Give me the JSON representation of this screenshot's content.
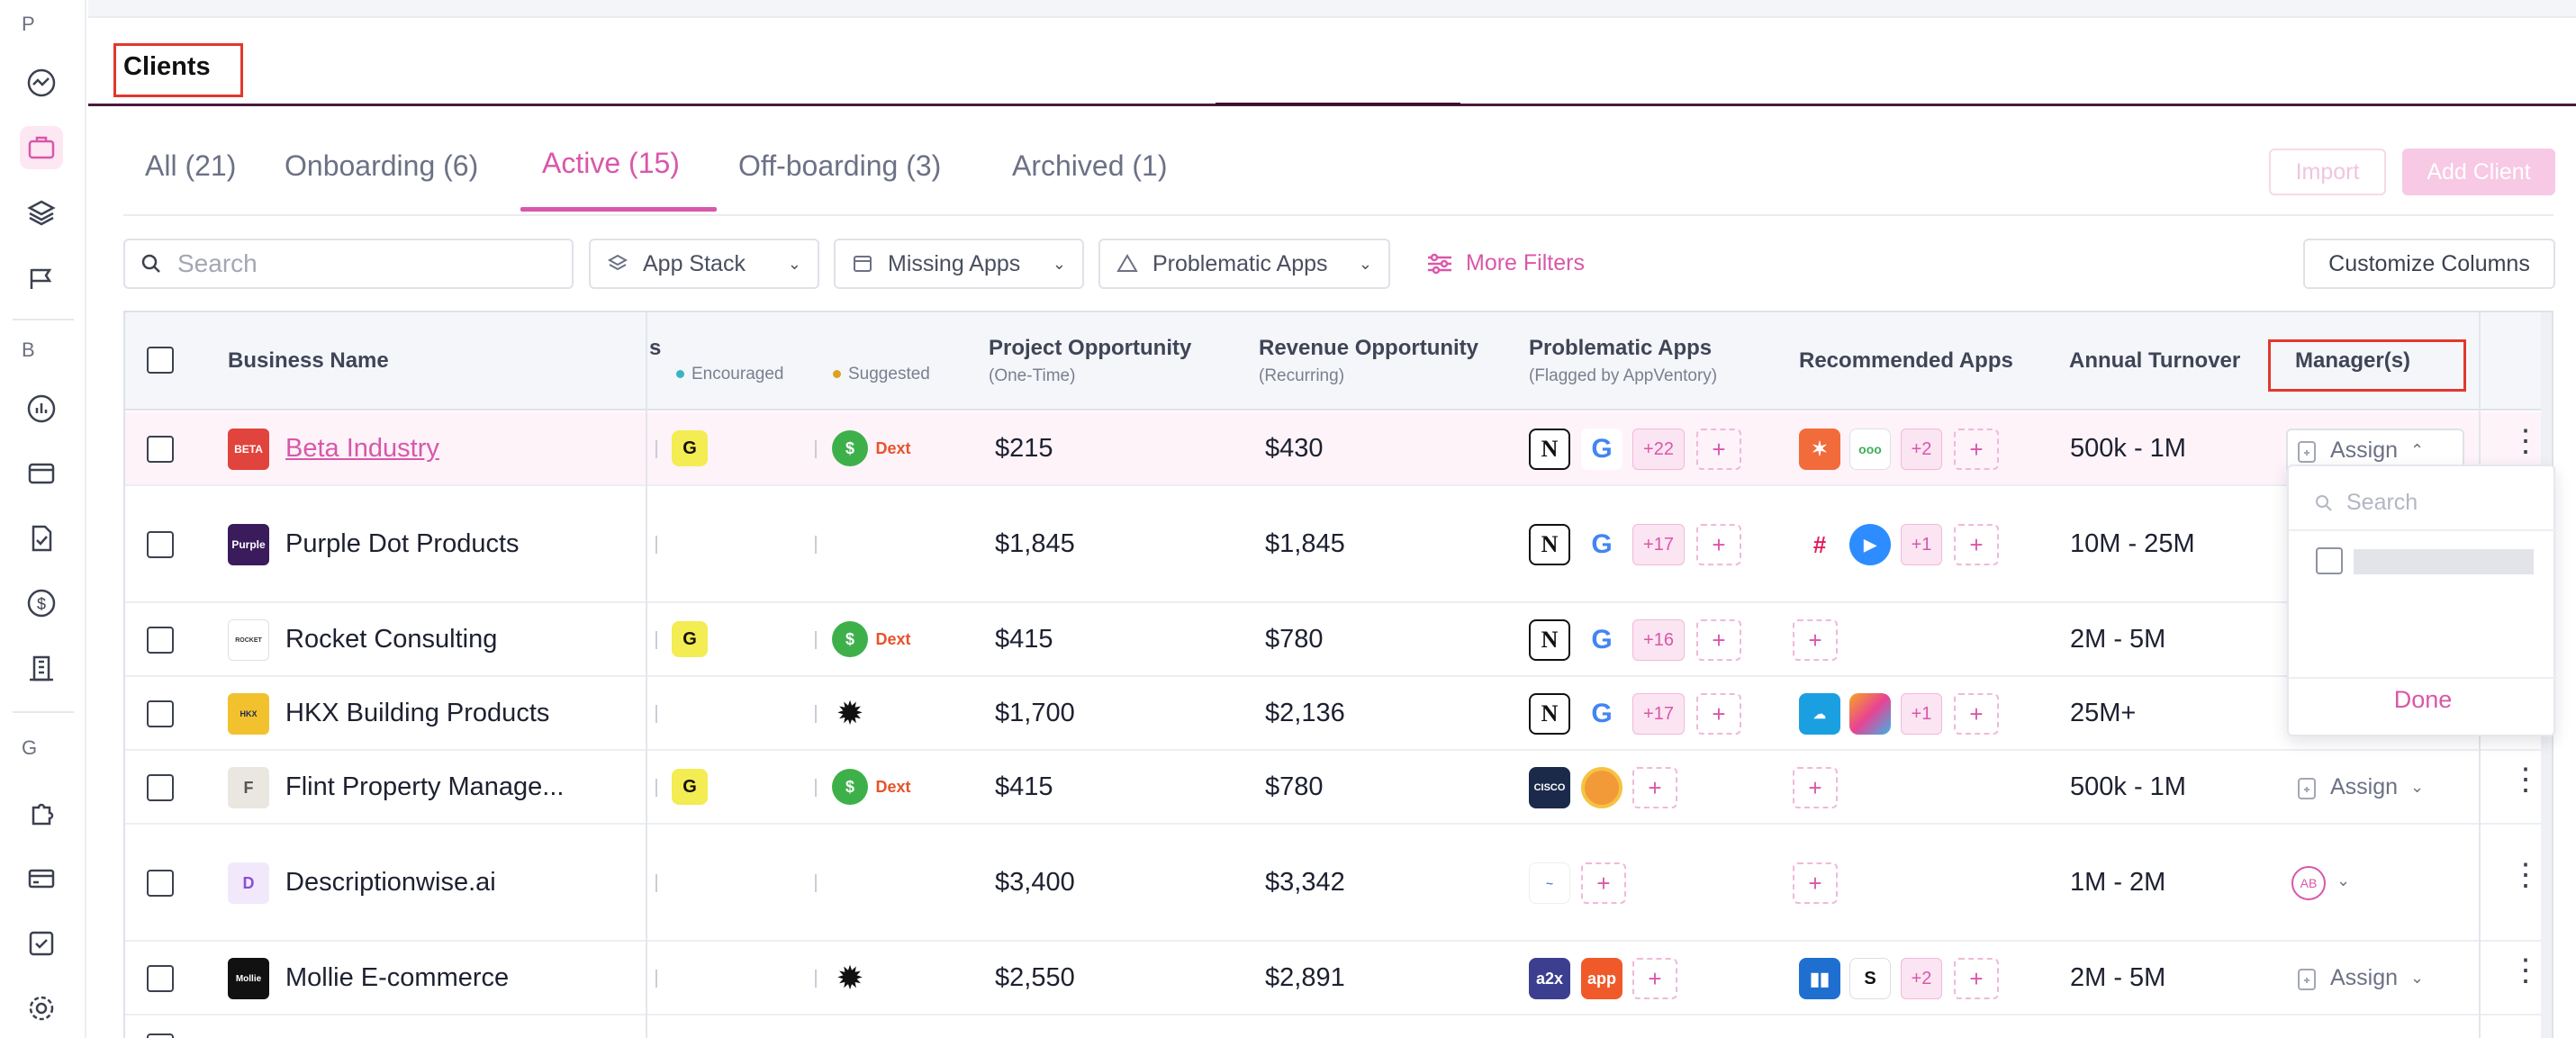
{
  "sidebar": {
    "sections": [
      "P",
      "B",
      "G"
    ]
  },
  "page": {
    "title": "Clients"
  },
  "tabs": [
    {
      "label": "All (21)"
    },
    {
      "label": "Onboarding (6)"
    },
    {
      "label": "Active (15)"
    },
    {
      "label": "Off-boarding (3)"
    },
    {
      "label": "Archived (1)"
    }
  ],
  "actions": {
    "import": "Import",
    "add_client": "Add Client",
    "customize_columns": "Customize Columns"
  },
  "filters": {
    "search_placeholder": "Search",
    "app_stack": "App Stack",
    "missing_apps": "Missing Apps",
    "problematic_apps": "Problematic Apps",
    "more_filters": "More Filters"
  },
  "columns": {
    "business_name": "Business Name",
    "apps_partial": "s",
    "encouraged": "Encouraged",
    "suggested": "Suggested",
    "project_opp": "Project Opportunity",
    "project_opp_sub": "(One-Time)",
    "revenue_opp": "Revenue Opportunity",
    "revenue_opp_sub": "(Recurring)",
    "problematic": "Problematic Apps",
    "problematic_sub": "(Flagged by AppVentory)",
    "recommended": "Recommended Apps",
    "turnover": "Annual Turnover",
    "managers": "Manager(s)"
  },
  "colors": {
    "accent": "#d957aa",
    "encouraged_dot": "#3bb3c3",
    "suggested_dot": "#d9a21f"
  },
  "rows": [
    {
      "name": "Beta Industry",
      "project": "$215",
      "revenue": "$430",
      "prob_more": "+22",
      "rec_more": "+2",
      "turnover": "500k - 1M",
      "manager": "Assign",
      "logo_text": "BETA",
      "logo_color": "#e0443d"
    },
    {
      "name": "Purple Dot Products",
      "project": "$1,845",
      "revenue": "$1,845",
      "prob_more": "+17",
      "rec_more": "+1",
      "turnover": "10M - 25M",
      "logo_text": "Purple",
      "logo_color": "#3a1b5c"
    },
    {
      "name": "Rocket Consulting",
      "project": "$415",
      "revenue": "$780",
      "prob_more": "+16",
      "turnover": "2M - 5M",
      "logo_text": "ROCKET",
      "logo_color": "#ffffff"
    },
    {
      "name": "HKX Building Products",
      "project": "$1,700",
      "revenue": "$2,136",
      "prob_more": "+17",
      "rec_more": "+1",
      "turnover": "25M+",
      "logo_text": "HKX",
      "logo_color": "#f2c12e"
    },
    {
      "name": "Flint Property Manage...",
      "project": "$415",
      "revenue": "$780",
      "turnover": "500k - 1M",
      "manager": "Assign",
      "logo_text": "F",
      "logo_color": "#e9e7e0"
    },
    {
      "name": "Descriptionwise.ai",
      "project": "$3,400",
      "revenue": "$3,342",
      "turnover": "1M - 2M",
      "manager_initials": "AB",
      "logo_text": "D",
      "logo_color": "#f1e9fb"
    },
    {
      "name": "Mollie E-commerce",
      "project": "$2,550",
      "revenue": "$2,891",
      "rec_more": "+2",
      "turnover": "2M - 5M",
      "manager": "Assign",
      "logo_text": "Mollie",
      "logo_color": "#111111"
    }
  ],
  "app_labels": {
    "dext": "Dext",
    "notion": "N",
    "google": "G",
    "cisco": "CISCO",
    "a2x": "a2x",
    "app": "app",
    "s": "S"
  },
  "popup": {
    "search_placeholder": "Search",
    "done": "Done"
  }
}
